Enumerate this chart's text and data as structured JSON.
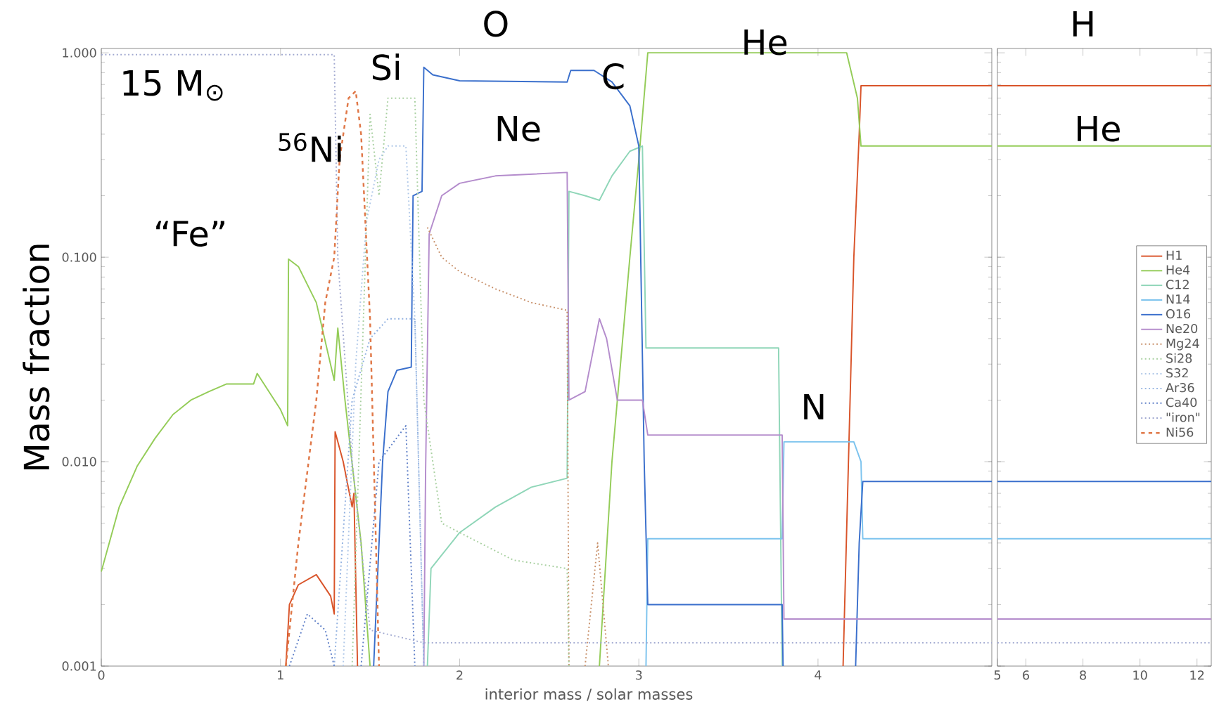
{
  "chart_data": [
    {
      "type": "line",
      "xlabel": "interior mass / solar masses",
      "ylabel": "Mass fraction",
      "log": "y",
      "xlim": [
        0,
        4.97
      ],
      "ylim": [
        0.001,
        1.05
      ],
      "xticks": [
        0,
        1,
        2,
        3,
        4
      ],
      "yticks": [
        {
          "value": 0.001,
          "label": "0.001"
        },
        {
          "value": 0.01,
          "label": "0.010"
        },
        {
          "value": 0.1,
          "label": "0.100"
        },
        {
          "value": 1,
          "label": "1.000"
        }
      ],
      "series": [
        {
          "color": "#d9542a",
          "line_style": "solid",
          "x": [
            1.03,
            1.05,
            1.1,
            1.2,
            1.28,
            1.3,
            1.305,
            1.35,
            1.4,
            1.41,
            1.43,
            2.0,
            4.14,
            4.17,
            4.2,
            4.23,
            4.24,
            4.97
          ],
          "values": [
            0.001,
            0.002,
            0.0025,
            0.0028,
            0.0022,
            0.0018,
            0.014,
            0.01,
            0.006,
            0.007,
            0.001,
            null,
            0.001,
            0.01,
            0.1,
            0.4,
            0.69,
            0.69
          ]
        },
        {
          "color": "#94cc58",
          "line_style": "solid",
          "x": [
            0,
            0.1,
            0.2,
            0.3,
            0.4,
            0.5,
            0.6,
            0.7,
            0.85,
            0.87,
            1.0,
            1.04,
            1.045,
            1.1,
            1.2,
            1.3,
            1.32,
            1.36,
            1.45,
            1.5,
            2.0,
            2.78,
            2.85,
            2.95,
            3.0,
            3.05,
            4.16,
            4.22,
            4.24,
            4.97
          ],
          "values": [
            0.0029,
            0.006,
            0.0095,
            0.013,
            0.017,
            0.02,
            0.022,
            0.024,
            0.024,
            0.027,
            0.018,
            0.015,
            0.098,
            0.09,
            0.06,
            0.025,
            0.045,
            0.02,
            0.004,
            0.001,
            null,
            0.001,
            0.01,
            0.1,
            0.3,
            1.0,
            1.0,
            0.6,
            0.35,
            0.35
          ]
        },
        {
          "color": "#8fd6b8",
          "line_style": "solid",
          "x": [
            1.82,
            1.84,
            2.0,
            2.2,
            2.4,
            2.6,
            2.61,
            2.7,
            2.78,
            2.85,
            2.95,
            3.02,
            3.04,
            3.78,
            3.8
          ],
          "values": [
            0.001,
            0.003,
            0.0045,
            0.006,
            0.0075,
            0.0083,
            0.21,
            0.2,
            0.19,
            0.25,
            0.33,
            0.35,
            0.036,
            0.036,
            0.001
          ]
        },
        {
          "color": "#7cc3ee",
          "line_style": "solid",
          "x": [
            3.04,
            3.05,
            3.8,
            3.81,
            4.2,
            4.24,
            4.25,
            4.97
          ],
          "values": [
            0.001,
            0.0042,
            0.0042,
            0.0125,
            0.0125,
            0.01,
            0.0042,
            0.0042
          ]
        },
        {
          "color": "#3a6fcc",
          "line_style": "solid",
          "x": [
            1.52,
            1.57,
            1.6,
            1.65,
            1.73,
            1.74,
            1.79,
            1.8,
            1.85,
            2.0,
            2.6,
            2.62,
            2.75,
            2.85,
            2.95,
            3.0,
            3.03,
            3.05,
            3.8,
            3.805,
            4.0,
            4.21,
            4.23,
            4.25,
            4.97
          ],
          "values": [
            0.001,
            0.01,
            0.022,
            0.028,
            0.029,
            0.2,
            0.21,
            0.85,
            0.78,
            0.73,
            0.72,
            0.82,
            0.82,
            0.72,
            0.55,
            0.35,
            0.01,
            0.002,
            0.002,
            0.001,
            null,
            0.001,
            0.004,
            0.008,
            0.008
          ]
        },
        {
          "color": "#b48ccc",
          "line_style": "solid",
          "x": [
            1.8,
            1.81,
            1.83,
            1.9,
            2.0,
            2.2,
            2.6,
            2.61,
            2.7,
            2.78,
            2.82,
            2.88,
            3.02,
            3.05,
            3.8,
            3.81,
            4.97
          ],
          "values": [
            0.001,
            0.009,
            0.13,
            0.2,
            0.23,
            0.25,
            0.26,
            0.02,
            0.022,
            0.05,
            0.04,
            0.02,
            0.02,
            0.0135,
            0.0135,
            0.0017,
            0.0017
          ]
        },
        {
          "color": "#c8906a",
          "line_style": "dotted",
          "x": [
            1.82,
            1.9,
            2.0,
            2.2,
            2.4,
            2.6,
            2.61,
            2.65,
            2.7,
            2.77,
            2.8,
            2.83
          ],
          "values": [
            0.14,
            0.1,
            0.085,
            0.07,
            0.06,
            0.055,
            0.001,
            null,
            0.001,
            0.004,
            0.002,
            0.001
          ]
        },
        {
          "color": "#a8d0a0",
          "line_style": "dotted",
          "x": [
            1.4,
            1.5,
            1.55,
            1.6,
            1.75,
            1.8,
            1.9,
            2.0,
            2.3,
            2.6,
            2.61
          ],
          "values": [
            0.001,
            0.5,
            0.2,
            0.6,
            0.6,
            0.02,
            0.005,
            0.0045,
            0.0033,
            0.003,
            0.001
          ]
        },
        {
          "color": "#b0c8e8",
          "line_style": "dotted",
          "x": [
            1.35,
            1.42,
            1.48,
            1.55,
            1.6,
            1.7,
            1.75,
            1.8
          ],
          "values": [
            0.001,
            0.03,
            0.15,
            0.3,
            0.35,
            0.35,
            0.05,
            0.001
          ]
        },
        {
          "color": "#90b0e0",
          "line_style": "dotted",
          "x": [
            1.3,
            1.4,
            1.5,
            1.6,
            1.75,
            1.8
          ],
          "values": [
            0.001,
            0.02,
            0.04,
            0.05,
            0.05,
            0.001
          ]
        },
        {
          "color": "#6080c8",
          "line_style": "dotted",
          "x": [
            1.05,
            1.15,
            1.25,
            1.3,
            1.4,
            1.45,
            1.55,
            1.7,
            1.75
          ],
          "values": [
            0.001,
            0.0018,
            0.0015,
            0.001,
            null,
            0.001,
            0.01,
            0.015,
            0.001
          ]
        },
        {
          "color": "#a0a8d0",
          "line_style": "dotted",
          "x": [
            0,
            1.3,
            1.32,
            1.4,
            1.5,
            1.8,
            4.97
          ],
          "values": [
            0.98,
            0.98,
            0.1,
            0.01,
            0.0015,
            0.0013,
            0.0013
          ]
        },
        {
          "color": "#e07848",
          "line_style": "dashed",
          "x": [
            1.03,
            1.1,
            1.2,
            1.25,
            1.3,
            1.33,
            1.38,
            1.42,
            1.45,
            1.5,
            1.53,
            1.55
          ],
          "values": [
            0.001,
            0.004,
            0.02,
            0.06,
            0.1,
            0.3,
            0.6,
            0.65,
            0.4,
            0.05,
            0.005,
            0.001
          ]
        }
      ],
      "annotations": [
        "15 M$_{⊙}$",
        "“Fe”",
        "$^{56}$Ni",
        "Si",
        "O",
        "Ne",
        "C",
        "He",
        "N"
      ]
    },
    {
      "type": "line",
      "log": "y",
      "tick_labels": "x",
      "legend": "right",
      "xlim": [
        5,
        12.5
      ],
      "ylim": [
        0.001,
        1.05
      ],
      "xticks": [
        5,
        6,
        8,
        10,
        12
      ],
      "yticks": [
        0.001,
        0.01,
        0.1,
        1
      ],
      "series": [
        {
          "name": "H1",
          "color": "#d9542a",
          "line_style": "solid",
          "x": [
            5,
            12.5
          ],
          "values": [
            0.69,
            0.69
          ]
        },
        {
          "name": "He4",
          "color": "#94cc58",
          "line_style": "solid",
          "x": [
            5,
            12.5
          ],
          "values": [
            0.35,
            0.35
          ]
        },
        {
          "name": "C12",
          "color": "#8fd6b8",
          "line_style": "solid"
        },
        {
          "name": "N14",
          "color": "#7cc3ee",
          "line_style": "solid",
          "x": [
            5,
            12.5
          ],
          "values": [
            0.0042,
            0.0042
          ]
        },
        {
          "name": "O16",
          "color": "#3a6fcc",
          "line_style": "solid",
          "x": [
            5,
            12.5
          ],
          "values": [
            0.008,
            0.008
          ]
        },
        {
          "name": "Ne20",
          "color": "#b48ccc",
          "line_style": "solid",
          "x": [
            5,
            12.5
          ],
          "values": [
            0.0017,
            0.0017
          ]
        },
        {
          "name": "Mg24",
          "color": "#c8906a",
          "line_style": "dotted"
        },
        {
          "name": "Si28",
          "color": "#a8d0a0",
          "line_style": "dotted"
        },
        {
          "name": "S32",
          "color": "#b0c8e8",
          "line_style": "dotted"
        },
        {
          "name": "Ar36",
          "color": "#90b0e0",
          "line_style": "dotted"
        },
        {
          "name": "Ca40",
          "color": "#6080c8",
          "line_style": "dotted"
        },
        {
          "name": "\"iron\"",
          "color": "#a0a8d0",
          "line_style": "dotted",
          "x": [
            5,
            12.5
          ],
          "values": [
            0.0013,
            0.0013
          ]
        },
        {
          "name": "Ni56",
          "color": "#e07848",
          "line_style": "dashed"
        }
      ],
      "annotations": [
        "H",
        "He"
      ]
    }
  ]
}
